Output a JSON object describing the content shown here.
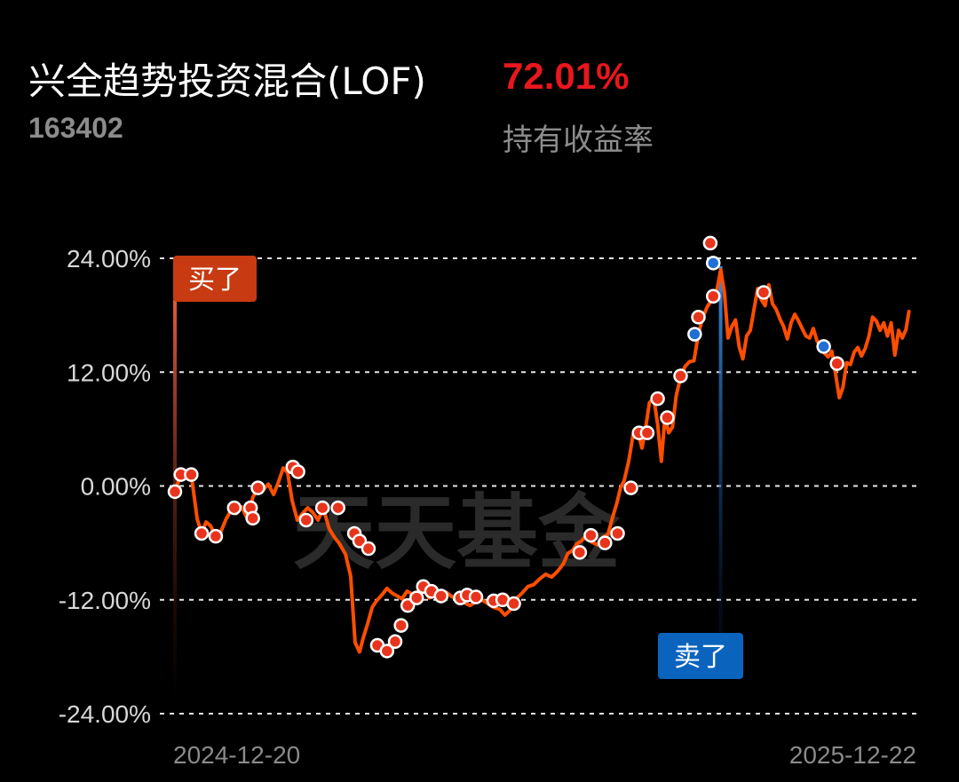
{
  "header": {
    "fund_name": "兴全趋势投资混合(LOF)",
    "fund_code": "163402",
    "return_value": "72.01%",
    "return_label": "持有收益率"
  },
  "watermark": "天天基金",
  "markers": {
    "buy_label": "买了",
    "sell_label": "卖了"
  },
  "colors": {
    "line": "#ff4e00",
    "buy_marker": "#c73a12",
    "buy_dot": "#e8341c",
    "sell_marker": "#0a64be",
    "sell_dot": "#1f6fd6",
    "return_value": "#e8171d"
  },
  "chart_data": {
    "type": "line",
    "title": "",
    "xlabel": "",
    "ylabel": "",
    "x_tick_labels": [
      "2024-12-20",
      "2025-12-22"
    ],
    "y_ticks": [
      24,
      12,
      0,
      -12,
      -24
    ],
    "y_tick_labels": [
      "24.00%",
      "12.00%",
      "0.00%",
      "-12.00%",
      "-24.00%"
    ],
    "ylim": [
      -24,
      24
    ],
    "x_range": [
      0,
      100
    ],
    "grid": "horizontal-dashed",
    "series": [
      {
        "values": [
          [
            0,
            -0.6
          ],
          [
            0.8,
            1.2
          ],
          [
            1.5,
            0.9
          ],
          [
            2.2,
            1.2
          ],
          [
            3.0,
            -3.5
          ],
          [
            3.6,
            -5.0
          ],
          [
            4.2,
            -3.8
          ],
          [
            4.8,
            -4.2
          ],
          [
            5.5,
            -5.3
          ],
          [
            6.2,
            -4.8
          ],
          [
            6.9,
            -3.5
          ],
          [
            7.6,
            -2.5
          ],
          [
            8.3,
            -2.9
          ],
          [
            9.0,
            -2.2
          ],
          [
            9.8,
            -3.5
          ],
          [
            10.5,
            -1.2
          ],
          [
            11.2,
            -0.2
          ],
          [
            11.9,
            -0.4
          ],
          [
            12.6,
            0.2
          ],
          [
            13.3,
            -0.9
          ],
          [
            14.0,
            0.5
          ],
          [
            14.6,
            1.9
          ],
          [
            15.2,
            1.4
          ],
          [
            15.8,
            -1.5
          ],
          [
            16.5,
            -3.6
          ],
          [
            17.2,
            -2.9
          ],
          [
            17.9,
            -2.3
          ],
          [
            18.6,
            -2.8
          ],
          [
            19.3,
            -3.6
          ],
          [
            20.0,
            -2.3
          ],
          [
            20.8,
            -4.5
          ],
          [
            21.5,
            -5.4
          ],
          [
            22.2,
            -6.1
          ],
          [
            23.0,
            -7.2
          ],
          [
            23.7,
            -9.5
          ],
          [
            24.3,
            -16.5
          ],
          [
            24.9,
            -17.5
          ],
          [
            25.4,
            -16.0
          ],
          [
            26.0,
            -14.5
          ],
          [
            26.6,
            -12.8
          ],
          [
            27.2,
            -12.1
          ],
          [
            27.9,
            -11.5
          ],
          [
            28.6,
            -10.8
          ],
          [
            29.3,
            -11.3
          ],
          [
            30.0,
            -11.6
          ],
          [
            30.6,
            -11.9
          ],
          [
            31.3,
            -11.1
          ],
          [
            32.0,
            -11.4
          ],
          [
            32.8,
            -11.2
          ],
          [
            33.6,
            -11.0
          ],
          [
            34.3,
            -11.8
          ],
          [
            35.0,
            -11.6
          ],
          [
            35.8,
            -11.4
          ],
          [
            36.6,
            -11.2
          ],
          [
            37.4,
            -11.7
          ],
          [
            38.2,
            -11.9
          ],
          [
            39.0,
            -12.3
          ],
          [
            39.8,
            -12.6
          ],
          [
            40.6,
            -12.2
          ],
          [
            41.4,
            -12.0
          ],
          [
            42.2,
            -12.4
          ],
          [
            43.0,
            -12.8
          ],
          [
            43.8,
            -13.0
          ],
          [
            44.5,
            -13.6
          ],
          [
            45.2,
            -13.1
          ],
          [
            46.0,
            -11.9
          ],
          [
            46.8,
            -11.3
          ],
          [
            47.6,
            -10.6
          ],
          [
            48.4,
            -10.4
          ],
          [
            49.2,
            -9.8
          ],
          [
            50.0,
            -9.3
          ],
          [
            50.8,
            -9.6
          ],
          [
            51.6,
            -9.0
          ],
          [
            52.4,
            -8.2
          ],
          [
            53.0,
            -7.1
          ],
          [
            53.6,
            -6.8
          ],
          [
            54.2,
            -6.1
          ],
          [
            54.8,
            -5.8
          ],
          [
            55.5,
            -5.2
          ],
          [
            56.2,
            -5.9
          ],
          [
            57.0,
            -6.2
          ],
          [
            57.7,
            -5.4
          ],
          [
            58.4,
            -5.1
          ],
          [
            59.0,
            -3.4
          ],
          [
            59.6,
            -1.8
          ],
          [
            60.1,
            -0.2
          ],
          [
            60.6,
            0.6
          ],
          [
            61.2,
            2.6
          ],
          [
            61.8,
            5.4
          ],
          [
            62.4,
            5.8
          ],
          [
            63.0,
            4.0
          ],
          [
            63.5,
            6.2
          ],
          [
            64.0,
            8.8
          ],
          [
            64.6,
            9.2
          ],
          [
            65.1,
            6.5
          ],
          [
            65.6,
            2.6
          ],
          [
            66.1,
            7.3
          ],
          [
            66.6,
            5.6
          ],
          [
            67.1,
            6.2
          ],
          [
            67.6,
            9.5
          ],
          [
            68.2,
            11.5
          ],
          [
            68.8,
            12.6
          ],
          [
            69.4,
            13.1
          ],
          [
            70.0,
            13.2
          ],
          [
            70.6,
            16.0
          ],
          [
            71.2,
            17.8
          ],
          [
            71.8,
            18.9
          ],
          [
            72.4,
            19.6
          ],
          [
            73.0,
            20.2
          ],
          [
            73.6,
            22.8
          ],
          [
            74.1,
            20.5
          ],
          [
            74.6,
            15.6
          ],
          [
            75.1,
            16.8
          ],
          [
            75.6,
            17.5
          ],
          [
            76.1,
            14.7
          ],
          [
            76.6,
            13.4
          ],
          [
            77.1,
            15.8
          ],
          [
            77.6,
            16.4
          ],
          [
            78.1,
            18.6
          ],
          [
            78.6,
            20.8
          ],
          [
            79.1,
            19.6
          ],
          [
            79.6,
            19.0
          ],
          [
            80.1,
            21.2
          ],
          [
            80.6,
            19.2
          ],
          [
            81.1,
            18.6
          ],
          [
            81.6,
            17.6
          ],
          [
            82.1,
            16.8
          ],
          [
            82.6,
            15.5
          ],
          [
            83.1,
            17.2
          ],
          [
            83.6,
            18.1
          ],
          [
            84.1,
            17.4
          ],
          [
            84.6,
            16.6
          ],
          [
            85.1,
            15.8
          ],
          [
            85.6,
            15.6
          ],
          [
            86.1,
            16.6
          ],
          [
            86.6,
            15.3
          ],
          [
            87.1,
            14.7
          ],
          [
            87.6,
            14.0
          ],
          [
            88.1,
            13.6
          ],
          [
            88.6,
            14.2
          ],
          [
            89.1,
            11.8
          ],
          [
            89.6,
            9.3
          ],
          [
            90.1,
            10.4
          ],
          [
            90.6,
            13.0
          ],
          [
            91.1,
            12.8
          ],
          [
            91.6,
            14.1
          ],
          [
            92.1,
            14.6
          ],
          [
            92.6,
            13.7
          ],
          [
            93.1,
            14.5
          ],
          [
            93.6,
            15.8
          ],
          [
            94.1,
            17.8
          ],
          [
            94.6,
            17.4
          ],
          [
            95.1,
            16.4
          ],
          [
            95.6,
            17.2
          ],
          [
            96.1,
            15.8
          ],
          [
            96.6,
            17.2
          ],
          [
            97.1,
            13.8
          ],
          [
            97.6,
            16.4
          ],
          [
            98.1,
            15.6
          ],
          [
            98.6,
            16.5
          ],
          [
            99.0,
            18.4
          ]
        ]
      }
    ],
    "buy_points": [
      [
        0,
        -0.6
      ],
      [
        0.8,
        1.2
      ],
      [
        2.2,
        1.2
      ],
      [
        3.6,
        -5.0
      ],
      [
        5.5,
        -5.3
      ],
      [
        8.0,
        -2.3
      ],
      [
        10.2,
        -2.3
      ],
      [
        10.5,
        -3.4
      ],
      [
        11.2,
        -0.2
      ],
      [
        15.9,
        2.0
      ],
      [
        16.6,
        1.5
      ],
      [
        17.7,
        -3.6
      ],
      [
        19.9,
        -2.3
      ],
      [
        22.0,
        -2.3
      ],
      [
        24.2,
        -5.0
      ],
      [
        24.9,
        -5.8
      ],
      [
        26.1,
        -6.6
      ],
      [
        27.3,
        -16.8
      ],
      [
        28.6,
        -17.4
      ],
      [
        29.7,
        -16.4
      ],
      [
        30.5,
        -14.7
      ],
      [
        31.4,
        -12.6
      ],
      [
        32.6,
        -11.8
      ],
      [
        33.5,
        -10.6
      ],
      [
        34.6,
        -11.1
      ],
      [
        35.9,
        -11.6
      ],
      [
        38.5,
        -11.8
      ],
      [
        39.4,
        -11.5
      ],
      [
        40.6,
        -11.7
      ],
      [
        43.0,
        -12.1
      ],
      [
        44.2,
        -12.0
      ],
      [
        45.7,
        -12.4
      ],
      [
        54.6,
        -7.0
      ],
      [
        56.1,
        -5.2
      ],
      [
        58.0,
        -6.0
      ],
      [
        59.7,
        -5.0
      ],
      [
        61.5,
        -0.2
      ],
      [
        62.6,
        5.6
      ],
      [
        63.7,
        5.6
      ],
      [
        65.1,
        9.2
      ],
      [
        66.4,
        7.2
      ],
      [
        68.2,
        11.6
      ],
      [
        70.6,
        17.8
      ],
      [
        72.6,
        20.0
      ],
      [
        72.2,
        25.6
      ],
      [
        79.4,
        20.4
      ],
      [
        89.3,
        12.9
      ]
    ],
    "sell_points": [
      [
        70.1,
        16.0
      ],
      [
        72.6,
        23.5
      ],
      [
        87.5,
        14.7
      ]
    ],
    "buy_marker_x": 0,
    "sell_marker_x": 73.6
  }
}
